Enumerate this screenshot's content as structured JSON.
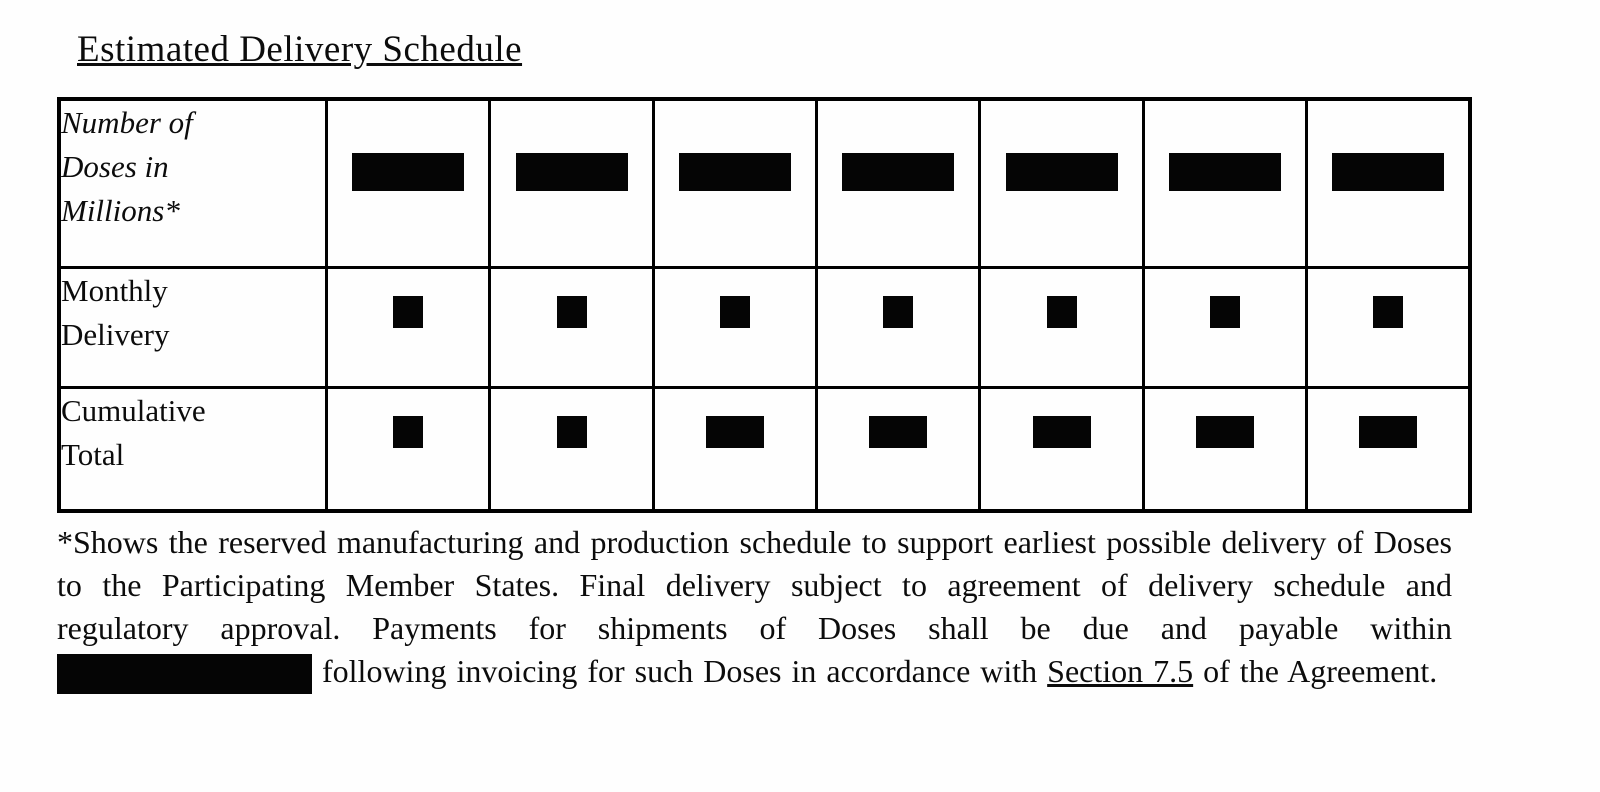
{
  "page": {
    "background": "#fefefe",
    "text_color": "#0c0c0c",
    "redaction_color": "#050505",
    "border_color": "#000000"
  },
  "title": "Estimated Delivery Schedule",
  "table": {
    "data_columns": 7,
    "rows": [
      {
        "label_lines": [
          "Number of",
          "Doses in",
          "Millions*"
        ],
        "style": "italic",
        "redactions": [
          "large-bar",
          "large-bar",
          "large-bar",
          "large-bar",
          "large-bar",
          "large-bar",
          "large-bar"
        ]
      },
      {
        "label_lines": [
          "Monthly",
          "Delivery"
        ],
        "style": "normal",
        "redactions": [
          "small-square",
          "small-square",
          "small-square",
          "small-square",
          "small-square",
          "small-square",
          "small-square"
        ]
      },
      {
        "label_lines": [
          "Cumulative",
          "Total"
        ],
        "style": "normal",
        "redactions": [
          "small-square",
          "small-square",
          "wide-bar",
          "wide-bar",
          "wide-bar",
          "wide-bar",
          "wide-bar"
        ]
      }
    ]
  },
  "footnote": {
    "part1": "*Shows the reserved manufacturing and production schedule to support earliest possible delivery of Doses to the Participating Member States. Final delivery subject to agreement of delivery schedule and regulatory approval. Payments for shipments of Doses shall be due and payable within ",
    "part2": " following invoicing for such Doses in accordance with ",
    "section_ref": "Section 7.5",
    "part3": " of the Agreement."
  }
}
